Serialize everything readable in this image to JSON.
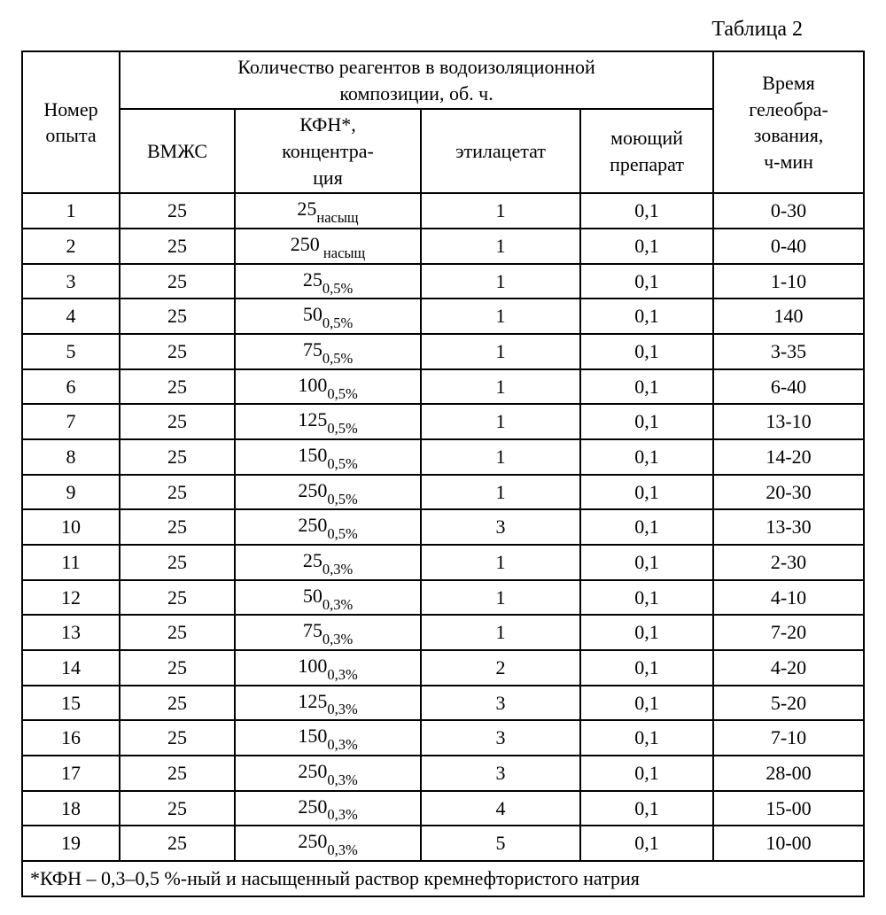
{
  "caption": "Таблица 2",
  "headers": {
    "col1_a": "Номер",
    "col1_b": "опыта",
    "group_a": "Количество реагентов в водоизоляционной",
    "group_b": "композиции, об. ч.",
    "sub1": "ВМЖС",
    "sub2_a": "КФН*,",
    "sub2_b": "концентра-",
    "sub2_c": "ция",
    "sub3": "этилацетат",
    "sub4_a": "моющий",
    "sub4_b": "препарат",
    "col6_a": "Время",
    "col6_b": "гелеобра-",
    "col6_c": "зования,",
    "col6_d": "ч-мин"
  },
  "rows": [
    {
      "n": "1",
      "v": "25",
      "k_main": "25",
      "k_sub": "насыщ",
      "e": "1",
      "m": "0,1",
      "t": "0-30"
    },
    {
      "n": "2",
      "v": "25",
      "k_main": "250",
      "k_sub": " насыщ",
      "e": "1",
      "m": "0,1",
      "t": "0-40"
    },
    {
      "n": "3",
      "v": "25",
      "k_main": "25",
      "k_sub": "0,5%",
      "e": "1",
      "m": "0,1",
      "t": "1-10"
    },
    {
      "n": "4",
      "v": "25",
      "k_main": "50",
      "k_sub": "0,5%",
      "e": "1",
      "m": "0,1",
      "t": "140"
    },
    {
      "n": "5",
      "v": "25",
      "k_main": "75",
      "k_sub": "0,5%",
      "e": "1",
      "m": "0,1",
      "t": "3-35"
    },
    {
      "n": "6",
      "v": "25",
      "k_main": "100",
      "k_sub": "0,5%",
      "e": "1",
      "m": "0,1",
      "t": "6-40"
    },
    {
      "n": "7",
      "v": "25",
      "k_main": "125",
      "k_sub": "0,5%",
      "e": "1",
      "m": "0,1",
      "t": "13-10"
    },
    {
      "n": "8",
      "v": "25",
      "k_main": "150",
      "k_sub": "0,5%",
      "e": "1",
      "m": "0,1",
      "t": "14-20"
    },
    {
      "n": "9",
      "v": "25",
      "k_main": "250",
      "k_sub": "0,5%",
      "e": "1",
      "m": "0,1",
      "t": "20-30"
    },
    {
      "n": "10",
      "v": "25",
      "k_main": "250",
      "k_sub": "0,5%",
      "e": "3",
      "m": "0,1",
      "t": "13-30"
    },
    {
      "n": "11",
      "v": "25",
      "k_main": "25",
      "k_sub": "0,3%",
      "e": "1",
      "m": "0,1",
      "t": "2-30"
    },
    {
      "n": "12",
      "v": "25",
      "k_main": "50",
      "k_sub": "0,3%",
      "e": "1",
      "m": "0,1",
      "t": "4-10"
    },
    {
      "n": "13",
      "v": "25",
      "k_main": "75",
      "k_sub": "0,3%",
      "e": "1",
      "m": "0,1",
      "t": "7-20"
    },
    {
      "n": "14",
      "v": "25",
      "k_main": "100",
      "k_sub": "0,3%",
      "e": "2",
      "m": "0,1",
      "t": "4-20"
    },
    {
      "n": "15",
      "v": "25",
      "k_main": "125",
      "k_sub": "0,3%",
      "e": "3",
      "m": "0,1",
      "t": "5-20"
    },
    {
      "n": "16",
      "v": "25",
      "k_main": "150",
      "k_sub": "0,3%",
      "e": "3",
      "m": "0,1",
      "t": "7-10"
    },
    {
      "n": "17",
      "v": "25",
      "k_main": "250",
      "k_sub": "0,3%",
      "e": "3",
      "m": "0,1",
      "t": "28-00"
    },
    {
      "n": "18",
      "v": "25",
      "k_main": "250",
      "k_sub": "0,3%",
      "e": "4",
      "m": "0,1",
      "t": "15-00"
    },
    {
      "n": "19",
      "v": "25",
      "k_main": "250",
      "k_sub": "0,3%",
      "e": "5",
      "m": "0,1",
      "t": "10-00"
    }
  ],
  "footnote": "*КФН – 0,3–0,5 %-ный и насыщенный раствор кремнефтористого натрия"
}
